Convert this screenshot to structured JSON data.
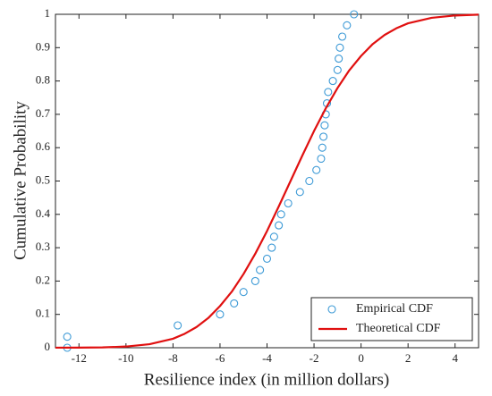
{
  "chart_data": {
    "type": "scatter",
    "xlabel": "Resilience index (in million dollars)",
    "ylabel": "Cumulative Probability",
    "xlim": [
      -13,
      5
    ],
    "xticks": [
      -12,
      -10,
      -8,
      -6,
      -4,
      -2,
      0,
      2,
      4
    ],
    "ylim": [
      0,
      1
    ],
    "yticks": [
      0,
      0.1,
      0.2,
      0.3,
      0.4,
      0.5,
      0.6,
      0.7,
      0.8,
      0.9,
      1
    ],
    "grid": false,
    "legend": "southeast",
    "series": [
      {
        "name": "Empirical CDF",
        "type": "scatter",
        "color": "#3d9ad6",
        "x": [
          -12.5,
          -12.5,
          -7.8,
          -6.0,
          -5.4,
          -5.0,
          -4.5,
          -4.3,
          -4.0,
          -3.8,
          -3.7,
          -3.5,
          -3.4,
          -3.1,
          -2.6,
          -2.2,
          -1.9,
          -1.7,
          -1.65,
          -1.6,
          -1.55,
          -1.5,
          -1.45,
          -1.4,
          -1.2,
          -1.0,
          -0.95,
          -0.9,
          -0.8,
          -0.6,
          -0.3
        ],
        "values": [
          0,
          0.033,
          0.067,
          0.1,
          0.133,
          0.167,
          0.2,
          0.233,
          0.267,
          0.3,
          0.333,
          0.367,
          0.4,
          0.433,
          0.467,
          0.5,
          0.533,
          0.567,
          0.6,
          0.633,
          0.667,
          0.7,
          0.733,
          0.767,
          0.8,
          0.833,
          0.867,
          0.9,
          0.933,
          0.967,
          1
        ]
      },
      {
        "name": "Theoretical CDF",
        "type": "line",
        "color": "#e01010",
        "x": [
          -13,
          -12,
          -11,
          -10,
          -9,
          -8,
          -7.5,
          -7,
          -6.5,
          -6,
          -5.5,
          -5,
          -4.5,
          -4,
          -3.5,
          -3,
          -2.5,
          -2,
          -1.5,
          -1,
          -0.5,
          0,
          0.5,
          1,
          1.5,
          2,
          3,
          4,
          5
        ],
        "values": [
          0.0001,
          0.0003,
          0.001,
          0.0036,
          0.0105,
          0.027,
          0.042,
          0.062,
          0.089,
          0.125,
          0.168,
          0.221,
          0.282,
          0.35,
          0.424,
          0.5,
          0.576,
          0.65,
          0.718,
          0.779,
          0.832,
          0.875,
          0.911,
          0.938,
          0.958,
          0.973,
          0.9895,
          0.9964,
          0.999
        ]
      }
    ]
  }
}
